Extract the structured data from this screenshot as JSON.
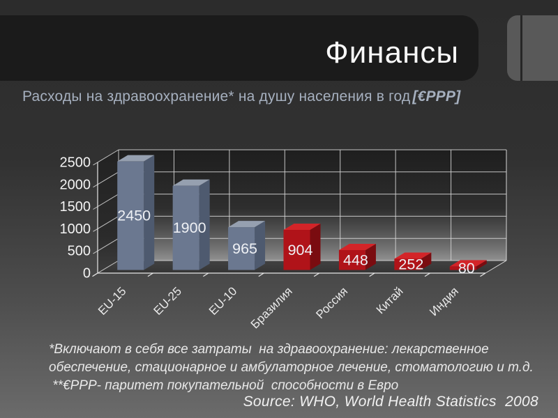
{
  "slide": {
    "title": "Финансы",
    "subtitle_main": "Расходы на здравоохранение* на душу населения в год",
    "subtitle_unit": "[€PPP]",
    "footnote_lines": [
      "*Включают в себя все затраты  на здравоохранение: лекарственное",
      "обеспечение, стационарное и амбулаторное лечение, стоматологию и т.д.",
      " **€PPP- паритет покупательной  способности в Евро"
    ],
    "source": "Source: WHO, World Health Statistics  2008"
  },
  "chart_data": {
    "type": "bar",
    "style": "3d-perspective",
    "title": "Расходы на здравоохранение на душу населения в год [€PPP]",
    "categories": [
      "EU-15",
      "EU-25",
      "EU-10",
      "Бразилия",
      "Россия",
      "Китай",
      "Индия"
    ],
    "values": [
      2450,
      1900,
      965,
      904,
      448,
      252,
      80
    ],
    "data_labels_shown": true,
    "bar_colors": [
      "blue",
      "blue",
      "blue",
      "red",
      "red",
      "red",
      "red"
    ],
    "colors": {
      "blue": {
        "front": "#6b7890",
        "top": "#96a0b0",
        "side": "#4e5a6f"
      },
      "red": {
        "front": "#b01319",
        "top": "#d32428",
        "side": "#7a0c10"
      },
      "gridline": "#d6d6d6",
      "axis": "#e8e8e8",
      "value_label": "#eef0f4",
      "tick_label": "#f3f3f3"
    },
    "yticks": [
      0,
      500,
      1000,
      1500,
      2000,
      2500
    ],
    "ylim": [
      0,
      2500
    ],
    "grid": true,
    "legend": false
  }
}
